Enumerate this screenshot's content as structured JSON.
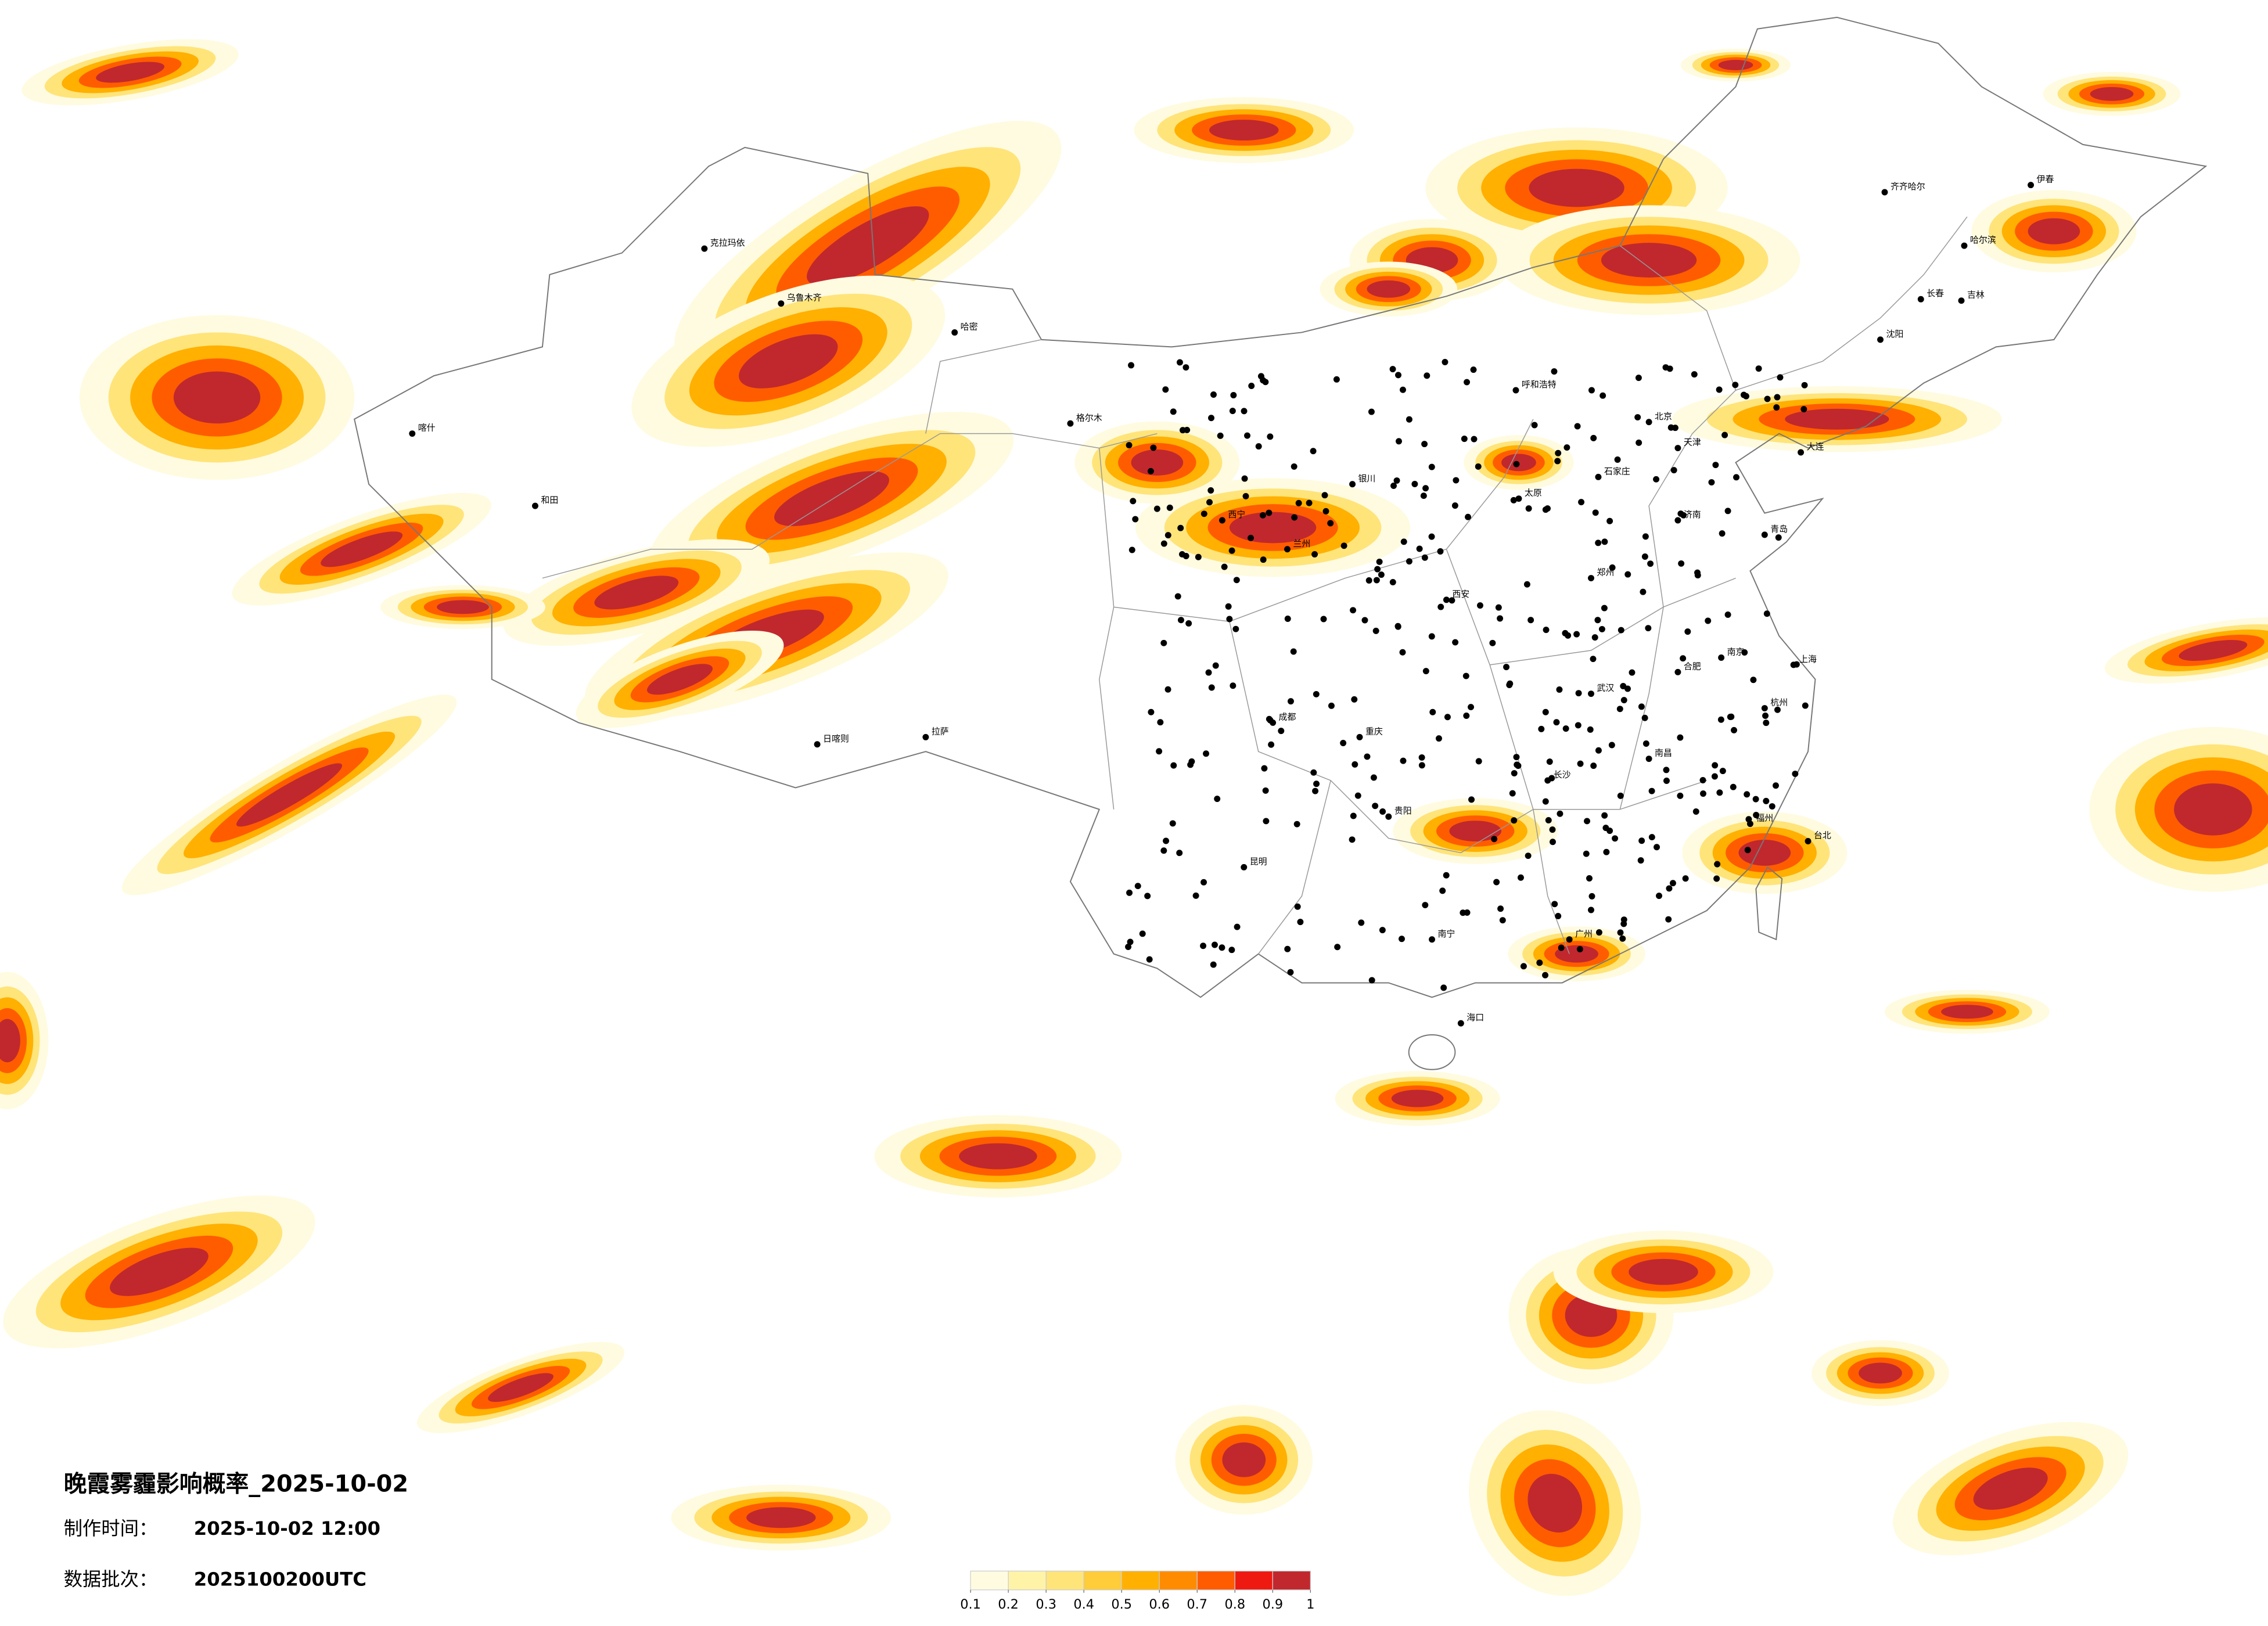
{
  "header": {
    "title": "晚霞雾霾影响概率_2025-10-02",
    "info": [
      {
        "label": "制作时间：",
        "value": "2025-10-02 12:00"
      },
      {
        "label": "数据批次：",
        "value": "2025100200UTC"
      }
    ]
  },
  "legend": {
    "ticks": [
      0.1,
      0.2,
      0.3,
      0.4,
      0.5,
      0.6,
      0.7,
      0.8,
      0.9,
      1
    ],
    "colors": [
      "#fffbe0",
      "#fff3a8",
      "#ffe47a",
      "#ffcc3a",
      "#ffb000",
      "#ff8c00",
      "#ff5c00",
      "#ee1a12",
      "#c0282e"
    ]
  },
  "cities": [
    "伊春",
    "齐齐哈尔",
    "哈尔滨",
    "长春",
    "吉林",
    "沈阳",
    "大连",
    "北京",
    "天津",
    "石家庄",
    "呼和浩特",
    "太原",
    "济南",
    "青岛",
    "郑州",
    "西安",
    "兰州",
    "西宁",
    "银川",
    "南京",
    "上海",
    "杭州",
    "合肥",
    "武汉",
    "长沙",
    "南昌",
    "福州",
    "台北",
    "广州",
    "南宁",
    "海口",
    "贵阳",
    "昆明",
    "成都",
    "重庆",
    "拉萨",
    "日喀则",
    "乌鲁木齐",
    "克拉玛依",
    "喀什",
    "和田",
    "哈密",
    "格尔木"
  ]
}
